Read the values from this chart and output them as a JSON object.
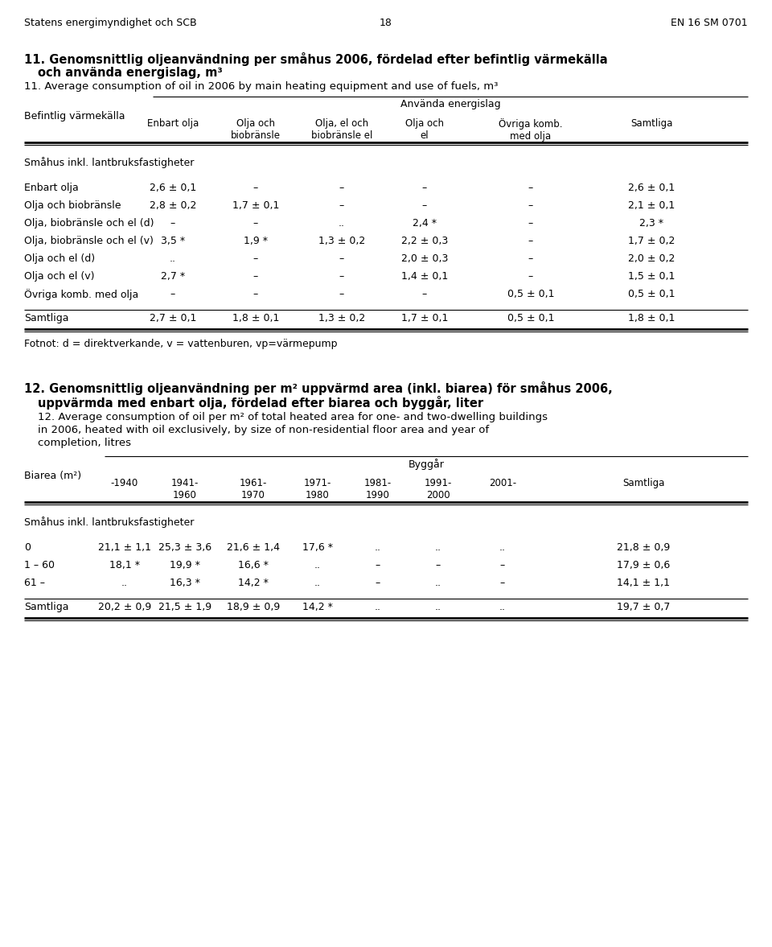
{
  "header_left": "Statens energimyndighet och SCB",
  "header_center": "18",
  "header_right": "EN 16 SM 0701",
  "title1_bold": "11. Genomsnittlig oljeanvändning per småhus 2006, fördelad efter befintlig värmekälla",
  "title1_bold2": "och använda energislag, m³",
  "title1_italic": "11. Average consumption of oil in 2006 by main heating equipment and use of fuels, m³",
  "table1_col_header_group": "Använda energislag",
  "table1_row_header": "Befintlig värmekälla",
  "table1_rows": [
    [
      "Enbart olja",
      "2,6 ± 0,1",
      "–",
      "–",
      "–",
      "–",
      "2,6 ± 0,1"
    ],
    [
      "Olja och biobränsle",
      "2,8 ± 0,2",
      "1,7 ± 0,1",
      "–",
      "–",
      "–",
      "2,1 ± 0,1"
    ],
    [
      "Olja, biobränsle och el (d)",
      "–",
      "–",
      "..",
      "2,4 *",
      "–",
      "2,3 *"
    ],
    [
      "Olja, biobränsle och el (v)",
      "3,5 *",
      "1,9 *",
      "1,3 ± 0,2",
      "2,2 ± 0,3",
      "–",
      "1,7 ± 0,2"
    ],
    [
      "Olja och el (d)",
      "..",
      "–",
      "–",
      "2,0 ± 0,3",
      "–",
      "2,0 ± 0,2"
    ],
    [
      "Olja och el (v)",
      "2,7 *",
      "–",
      "–",
      "1,4 ± 0,1",
      "–",
      "1,5 ± 0,1"
    ],
    [
      "Övriga komb. med olja",
      "–",
      "–",
      "–",
      "–",
      "0,5 ± 0,1",
      "0,5 ± 0,1"
    ]
  ],
  "table1_total": [
    "Samtliga",
    "2,7 ± 0,1",
    "1,8 ± 0,1",
    "1,3 ± 0,2",
    "1,7 ± 0,1",
    "0,5 ± 0,1",
    "1,8 ± 0,1"
  ],
  "table1_section": "Småhus inkl. lantbruksfastigheter",
  "footnote1": "Fotnot: d = direktverkande, v = vattenburen, vp=värmepump",
  "title2_bold": "12. Genomsnittlig oljeanvändning per m² uppvärmd area (inkl. biarea) för småhus 2006,",
  "title2_bold2": "uppvärmda med enbart olja, fördelad efter biarea och byggår, liter",
  "title2_italic_line1": "12. Average consumption of oil per m² of total heated area for one- and two-dwelling buildings",
  "title2_italic_line2": "in 2006, heated with oil exclusively, by size of non-residential floor area and year of",
  "title2_italic_line3": "completion, litres",
  "table2_col_header_group": "Byggår",
  "table2_row_header": "Biarea (m²)",
  "table2_cols": [
    "-1940",
    "1941-\n1960",
    "1961-\n1970",
    "1971-\n1980",
    "1981-\n1990",
    "1991-\n2000",
    "2001-",
    "Samtliga"
  ],
  "table2_rows": [
    [
      "0",
      "21,1 ± 1,1",
      "25,3 ± 3,6",
      "21,6 ± 1,4",
      "17,6 *",
      "..",
      "..",
      "..",
      "21,8 ± 0,9"
    ],
    [
      "1 – 60",
      "18,1 *",
      "19,9 *",
      "16,6 *",
      "..",
      "–",
      "–",
      "–",
      "17,9 ± 0,6"
    ],
    [
      "61 –",
      "..",
      "16,3 *",
      "14,2 *",
      "..",
      "–",
      "..",
      "–",
      "14,1 ± 1,1"
    ]
  ],
  "table2_total": [
    "Samtliga",
    "20,2 ± 0,9",
    "21,5 ± 1,9",
    "18,9 ± 0,9",
    "14,2 *",
    "..",
    "..",
    "..",
    "19,7 ± 0,7"
  ],
  "table2_section": "Småhus inkl. lantbruksfastigheter"
}
